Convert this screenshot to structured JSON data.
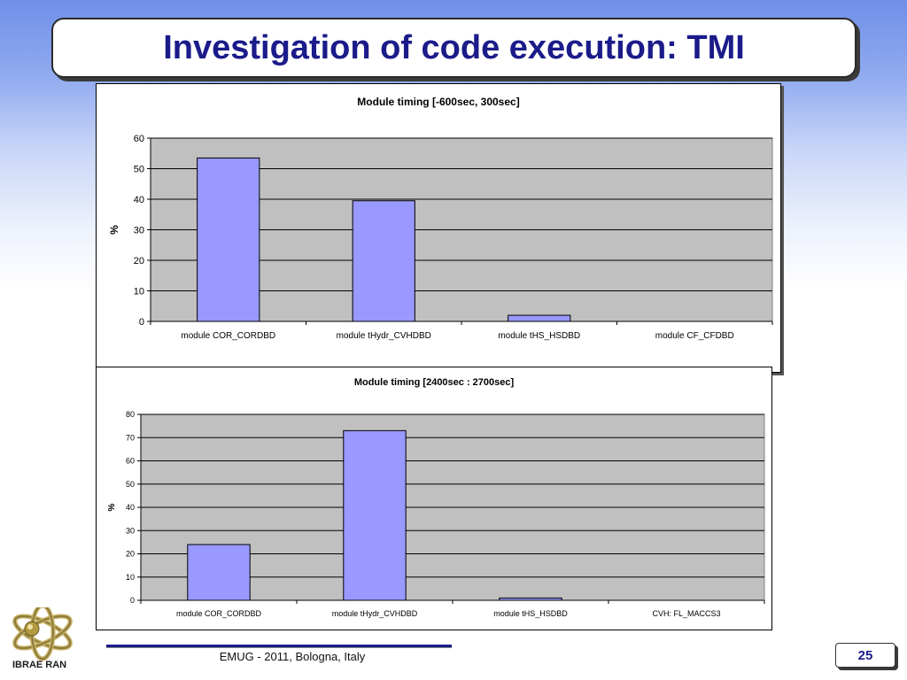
{
  "slide": {
    "title": "Investigation of code execution: TMI",
    "footer": "EMUG - 2011, Bologna, Italy",
    "page_number": "25",
    "logo_text": "IBRAE RAN"
  },
  "colors": {
    "bar_fill": "#9999ff",
    "plot_bg": "#c0c0c0",
    "title_color": "#1b1b8a"
  },
  "chart_data": [
    {
      "type": "bar",
      "title": "Module timing [-600sec, 300sec]",
      "categories": [
        "module COR_CORDBD",
        "module tHydr_CVHDBD",
        "module tHS_HSDBD",
        "module CF_CFDBD"
      ],
      "values": [
        53.5,
        39.5,
        2,
        0
      ],
      "xlabel": "",
      "ylabel": "%",
      "ylim": [
        0,
        60
      ],
      "yticks": [
        0,
        10,
        20,
        30,
        40,
        50,
        60
      ],
      "grid": true,
      "legend": "none"
    },
    {
      "type": "bar",
      "title": "Module timing [2400sec : 2700sec]",
      "categories": [
        "module COR_CORDBD",
        "module tHydr_CVHDBD",
        "module tHS_HSDBD",
        "CVH: FL_MACCS3"
      ],
      "values": [
        24,
        73,
        1,
        0
      ],
      "xlabel": "",
      "ylabel": "%",
      "ylim": [
        0,
        80
      ],
      "yticks": [
        0,
        10,
        20,
        30,
        40,
        50,
        60,
        70,
        80
      ],
      "grid": true,
      "legend": "none"
    }
  ]
}
